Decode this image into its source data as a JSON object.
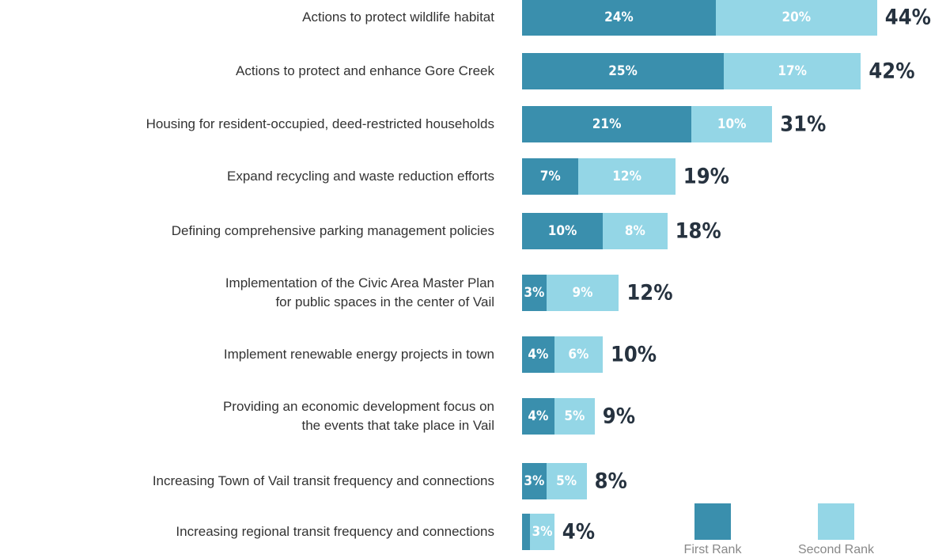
{
  "chart_data": {
    "type": "stacked-bar-horizontal",
    "categories": [
      "Actions to protect wildlife habitat",
      "Actions to protect and enhance Gore Creek",
      "Housing for resident-occupied, deed-restricted households",
      "Expand recycling and waste reduction efforts",
      "Defining comprehensive parking management policies",
      "Implementation of the Civic Area Master Plan\nfor public spaces in the center of Vail",
      "Implement renewable energy projects in town",
      "Providing an economic development focus on\nthe events that take place in Vail",
      "Increasing Town of Vail transit frequency and connections",
      "Increasing regional transit frequency and connections"
    ],
    "series": [
      {
        "name": "First Rank",
        "color": "#3a8fad",
        "values": [
          24,
          25,
          21,
          7,
          10,
          3,
          4,
          4,
          3,
          1
        ],
        "value_labels": [
          "24%",
          "25%",
          "21%",
          "7%",
          "10%",
          "3%",
          "4%",
          "4%",
          "3%",
          null
        ]
      },
      {
        "name": "Second Rank",
        "color": "#94d6e6",
        "values": [
          20,
          17,
          10,
          12,
          8,
          9,
          6,
          5,
          5,
          3
        ],
        "value_labels": [
          "20%",
          "17%",
          "10%",
          "12%",
          "8%",
          "9%",
          "6%",
          "5%",
          "5%",
          "3%"
        ]
      }
    ],
    "totals": [
      44,
      42,
      31,
      19,
      18,
      12,
      10,
      9,
      8,
      4
    ],
    "total_labels": [
      "44%",
      "42%",
      "31%",
      "19%",
      "18%",
      "12%",
      "10%",
      "9%",
      "8%",
      "4%"
    ]
  }
}
